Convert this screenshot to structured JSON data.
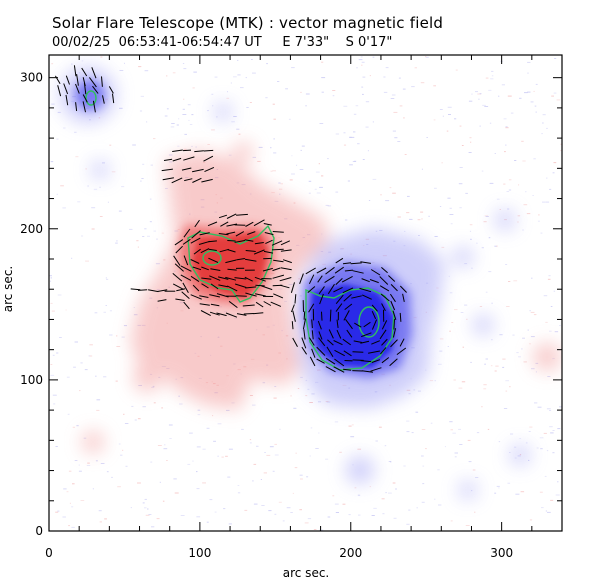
{
  "header": {
    "title": "Solar Flare Telescope (MTK) : vector magnetic field",
    "date": "00/02/25",
    "time_range": "06:53:41-06:54:47 UT",
    "pos_e": "E 7'33\"",
    "pos_s": "S 0'17\""
  },
  "axes": {
    "xlabel": "arc sec.",
    "ylabel": "arc sec.",
    "xlim": [
      0,
      340
    ],
    "ylim": [
      0,
      315
    ],
    "xticks": [
      0,
      100,
      200,
      300
    ],
    "yticks": [
      0,
      100,
      200,
      300
    ]
  },
  "colors": {
    "positive_polarity": "#f05a5a",
    "negative_polarity": "#3030f0",
    "contour": "#2fbf60",
    "vector": "#000000"
  },
  "map_features": [
    {
      "name": "positive-region-main",
      "polarity": "positive",
      "center": [
        110,
        185
      ]
    },
    {
      "name": "negative-region-main",
      "polarity": "negative",
      "center": [
        205,
        145
      ]
    },
    {
      "name": "negative-region-corner",
      "polarity": "negative",
      "center": [
        28,
        290
      ]
    }
  ]
}
